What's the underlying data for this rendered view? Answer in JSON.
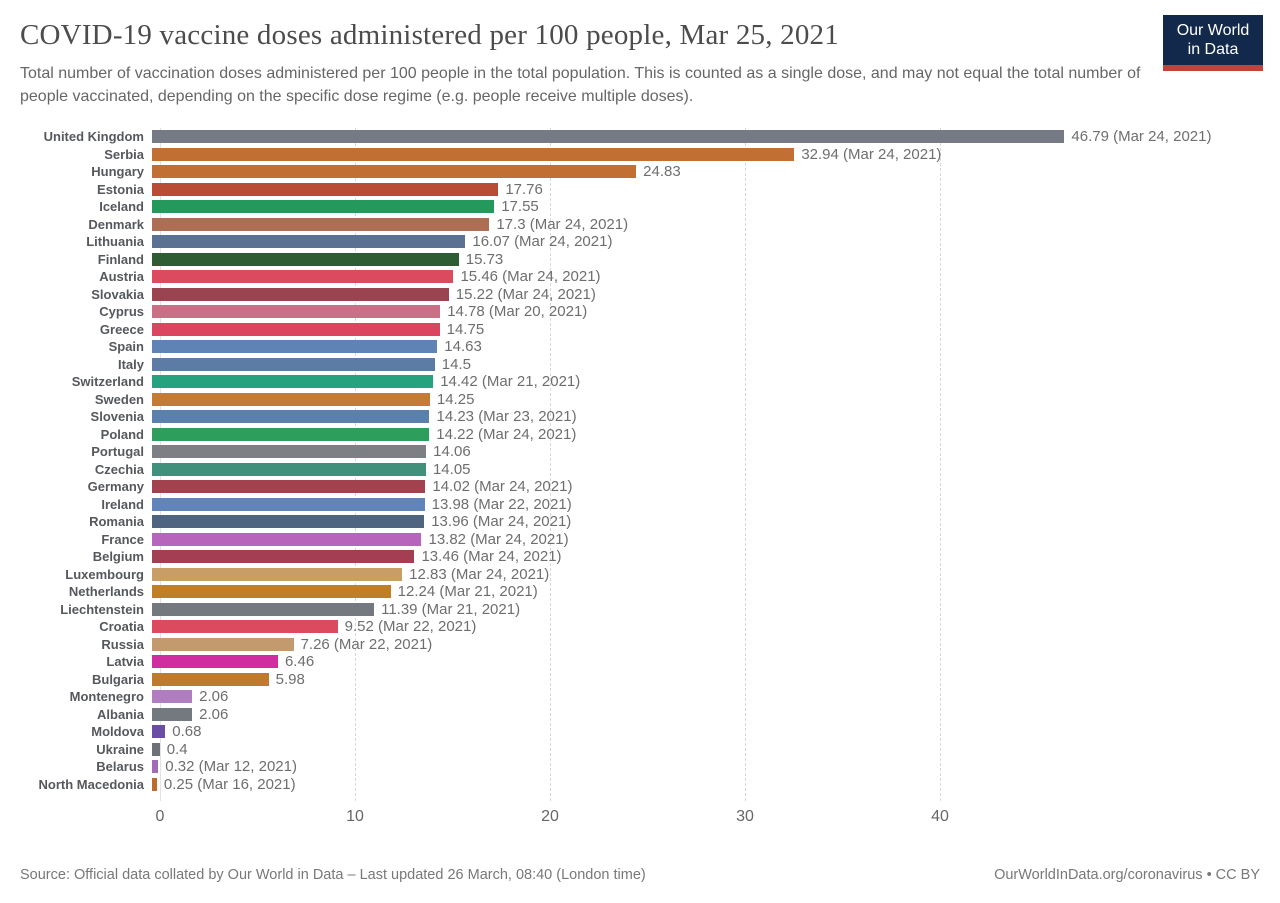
{
  "header": {
    "title": "COVID-19 vaccine doses administered per 100 people, Mar 25, 2021",
    "subtitle": "Total number of vaccination doses administered per 100 people in the total population. This is counted as a single dose, and may not equal the total number of people vaccinated, depending on the specific dose regime (e.g. people receive multiple doses).",
    "logo": {
      "line1": "Our World",
      "line2": "in Data",
      "bg_color": "#12294b",
      "accent_color": "#c0443c"
    }
  },
  "chart_data": {
    "type": "bar",
    "orientation": "horizontal",
    "title": "COVID-19 vaccine doses administered per 100 people, Mar 25, 2021",
    "xlabel": "",
    "ylabel": "",
    "xlim": [
      0,
      55.9
    ],
    "axis_ticks": [
      0,
      10,
      20,
      30,
      40
    ],
    "grid": "vertical-dashed",
    "legend": "none",
    "rows": [
      {
        "country": "United Kingdom",
        "value": 46.79,
        "label": "46.79 (Mar 24, 2021)",
        "color": "#757a84"
      },
      {
        "country": "Serbia",
        "value": 32.94,
        "label": "32.94 (Mar 24, 2021)",
        "color": "#c16f33"
      },
      {
        "country": "Hungary",
        "value": 24.83,
        "label": "24.83",
        "color": "#c16f33"
      },
      {
        "country": "Estonia",
        "value": 17.76,
        "label": "17.76",
        "color": "#b94c34"
      },
      {
        "country": "Iceland",
        "value": 17.55,
        "label": "17.55",
        "color": "#24995b"
      },
      {
        "country": "Denmark",
        "value": 17.3,
        "label": "17.3 (Mar 24, 2021)",
        "color": "#ae6e54"
      },
      {
        "country": "Lithuania",
        "value": 16.07,
        "label": "16.07 (Mar 24, 2021)",
        "color": "#5b7193"
      },
      {
        "country": "Finland",
        "value": 15.73,
        "label": "15.73",
        "color": "#2f5d33"
      },
      {
        "country": "Austria",
        "value": 15.46,
        "label": "15.46 (Mar 24, 2021)",
        "color": "#dc4a60"
      },
      {
        "country": "Slovakia",
        "value": 15.22,
        "label": "15.22 (Mar 24, 2021)",
        "color": "#9b4451"
      },
      {
        "country": "Cyprus",
        "value": 14.78,
        "label": "14.78 (Mar 20, 2021)",
        "color": "#c96f86"
      },
      {
        "country": "Greece",
        "value": 14.75,
        "label": "14.75",
        "color": "#dc4560"
      },
      {
        "country": "Spain",
        "value": 14.63,
        "label": "14.63",
        "color": "#6083b6"
      },
      {
        "country": "Italy",
        "value": 14.5,
        "label": "14.5",
        "color": "#5c7ca6"
      },
      {
        "country": "Switzerland",
        "value": 14.42,
        "label": "14.42 (Mar 21, 2021)",
        "color": "#27a27e"
      },
      {
        "country": "Sweden",
        "value": 14.25,
        "label": "14.25",
        "color": "#c37b35"
      },
      {
        "country": "Slovenia",
        "value": 14.23,
        "label": "14.23 (Mar 23, 2021)",
        "color": "#5a80ae"
      },
      {
        "country": "Poland",
        "value": 14.22,
        "label": "14.22 (Mar 24, 2021)",
        "color": "#2e9e5c"
      },
      {
        "country": "Portugal",
        "value": 14.06,
        "label": "14.06",
        "color": "#7c8085"
      },
      {
        "country": "Czechia",
        "value": 14.05,
        "label": "14.05",
        "color": "#41907c"
      },
      {
        "country": "Germany",
        "value": 14.02,
        "label": "14.02 (Mar 24, 2021)",
        "color": "#a2424f"
      },
      {
        "country": "Ireland",
        "value": 13.98,
        "label": "13.98 (Mar 22, 2021)",
        "color": "#6185ba"
      },
      {
        "country": "Romania",
        "value": 13.96,
        "label": "13.96 (Mar 24, 2021)",
        "color": "#4f6480"
      },
      {
        "country": "France",
        "value": 13.82,
        "label": "13.82 (Mar 24, 2021)",
        "color": "#b765bc"
      },
      {
        "country": "Belgium",
        "value": 13.46,
        "label": "13.46 (Mar 24, 2021)",
        "color": "#a43e52"
      },
      {
        "country": "Luxembourg",
        "value": 12.83,
        "label": "12.83 (Mar 24, 2021)",
        "color": "#c99e66"
      },
      {
        "country": "Netherlands",
        "value": 12.24,
        "label": "12.24 (Mar 21, 2021)",
        "color": "#c07e27"
      },
      {
        "country": "Liechtenstein",
        "value": 11.39,
        "label": "11.39 (Mar 21, 2021)",
        "color": "#74787f"
      },
      {
        "country": "Croatia",
        "value": 9.52,
        "label": "9.52 (Mar 22, 2021)",
        "color": "#dc4a5f"
      },
      {
        "country": "Russia",
        "value": 7.26,
        "label": "7.26 (Mar 22, 2021)",
        "color": "#c39a6e"
      },
      {
        "country": "Latvia",
        "value": 6.46,
        "label": "6.46",
        "color": "#d02da0"
      },
      {
        "country": "Bulgaria",
        "value": 5.98,
        "label": "5.98",
        "color": "#be7a2d"
      },
      {
        "country": "Montenegro",
        "value": 2.06,
        "label": "2.06",
        "color": "#b07ec0"
      },
      {
        "country": "Albania",
        "value": 2.06,
        "label": "2.06",
        "color": "#74787f"
      },
      {
        "country": "Moldova",
        "value": 0.68,
        "label": "0.68",
        "color": "#6c4da5"
      },
      {
        "country": "Ukraine",
        "value": 0.4,
        "label": "0.4",
        "color": "#6e7277"
      },
      {
        "country": "Belarus",
        "value": 0.32,
        "label": "0.32 (Mar 12, 2021)",
        "color": "#a06cb5"
      },
      {
        "country": "North Macedonia",
        "value": 0.25,
        "label": "0.25 (Mar 16, 2021)",
        "color": "#bd6b2c"
      }
    ]
  },
  "footer": {
    "source": "Source: Official data collated by Our World in Data – Last updated 26 March, 08:40 (London time)",
    "link": "OurWorldInData.org/coronavirus • CC BY"
  }
}
